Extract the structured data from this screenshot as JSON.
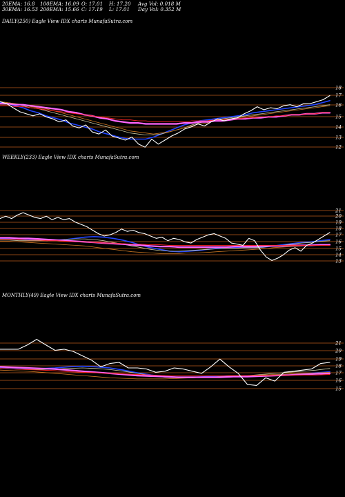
{
  "header": {
    "row1": [
      "20EMA: 16.8",
      "100EMA: 16.09",
      "O: 17.01",
      "H: 17.20",
      "Avg Vol: 0.018 M"
    ],
    "row2": [
      "30EMA: 16.53",
      "200EMA: 15.66",
      "C: 17.19",
      "L: 17.01",
      "Day Vol: 0.352  M"
    ]
  },
  "colors": {
    "background": "#000000",
    "price": "#ffffff",
    "gridline": "#8b4513",
    "ema_short": "#2244ff",
    "ema_mid": "#c8c8a0",
    "ema_long": "#ff66ff",
    "ema_long2": "#ff2222",
    "orange_ema": "#cc7722"
  },
  "chart_data": [
    {
      "type": "line",
      "title": "DAILY(250) Eagle  View  IDX  charts MunafaSutra.com",
      "ytick_labels": [
        "18",
        "17",
        "16",
        "15",
        "14",
        "13",
        "12"
      ],
      "ylim": [
        11.5,
        18.6
      ],
      "grid": true,
      "series": [
        {
          "role": "price",
          "color": "#ffffff",
          "width": 1.1,
          "values": [
            16.6,
            16.4,
            16.0,
            15.6,
            15.4,
            15.2,
            15.4,
            15.1,
            14.9,
            14.6,
            14.8,
            14.2,
            14.0,
            14.3,
            13.6,
            13.4,
            13.8,
            13.2,
            13.0,
            12.8,
            13.1,
            12.4,
            12.1,
            12.9,
            12.4,
            12.8,
            13.2,
            13.5,
            13.9,
            14.1,
            14.4,
            14.2,
            14.6,
            14.9,
            14.7,
            14.9,
            15.0,
            15.4,
            15.7,
            16.1,
            15.8,
            16.0,
            15.9,
            16.2,
            16.3,
            16.1,
            16.4,
            16.4,
            16.6,
            16.8,
            17.2
          ]
        },
        {
          "role": "ema",
          "color": "#2244ff",
          "width": 1.6,
          "values": [
            16.5,
            16.4,
            16.2,
            16.0,
            15.7,
            15.5,
            15.2,
            15.0,
            14.8,
            14.5,
            14.3,
            14.1,
            13.9,
            13.6,
            13.4,
            13.2,
            13.0,
            12.9,
            12.9,
            12.9,
            13.1,
            13.4,
            13.7,
            14.0,
            14.3,
            14.5,
            14.7,
            14.8,
            14.9,
            15.0,
            15.1,
            15.2,
            15.3,
            15.5,
            15.6,
            15.7,
            15.8,
            15.9,
            16.0,
            16.1,
            16.2,
            16.3,
            16.5,
            16.7
          ]
        },
        {
          "role": "ema",
          "color": "#c8c8a0",
          "width": 0.8,
          "values": [
            16.6,
            16.5,
            16.4,
            16.2,
            16.0,
            15.9,
            15.7,
            15.5,
            15.3,
            15.1,
            14.9,
            14.7,
            14.5,
            14.3,
            14.1,
            13.9,
            13.7,
            13.5,
            13.4,
            13.3,
            13.3,
            13.4,
            13.6,
            13.8,
            14.0,
            14.3,
            14.5,
            14.7,
            14.8,
            14.9,
            15.0,
            15.1,
            15.2,
            15.3,
            15.4,
            15.5,
            15.6,
            15.7,
            15.8,
            15.9,
            16.0,
            16.1,
            16.2,
            16.3
          ]
        },
        {
          "role": "ema",
          "color": "#cc7722",
          "width": 0.8,
          "values": [
            16.6,
            16.5,
            16.4,
            16.3,
            16.1,
            16.0,
            15.9,
            15.7,
            15.5,
            15.3,
            15.1,
            14.9,
            14.7,
            14.5,
            14.3,
            14.1,
            13.9,
            13.7,
            13.6,
            13.5,
            13.4,
            13.5,
            13.6,
            13.8,
            14.0,
            14.2,
            14.4,
            14.5,
            14.7,
            14.8,
            14.9,
            15.0,
            15.1,
            15.2,
            15.3,
            15.4,
            15.5,
            15.6,
            15.7,
            15.8,
            15.9,
            16.0,
            16.1,
            16.2
          ]
        },
        {
          "role": "ema",
          "color": "#ff66ff",
          "width": 2.2,
          "values": [
            16.4,
            16.4,
            16.3,
            16.3,
            16.2,
            16.1,
            16.0,
            15.9,
            15.8,
            15.6,
            15.5,
            15.3,
            15.2,
            15.0,
            14.9,
            14.7,
            14.6,
            14.5,
            14.5,
            14.4,
            14.4,
            14.4,
            14.4,
            14.4,
            14.5,
            14.5,
            14.6,
            14.6,
            14.7,
            14.7,
            14.8,
            14.9,
            14.9,
            15.0,
            15.0,
            15.1,
            15.1,
            15.2,
            15.3,
            15.3,
            15.4,
            15.4,
            15.5,
            15.5
          ]
        },
        {
          "role": "ema",
          "color": "#ff2222",
          "width": 0.9,
          "values": [
            16.2,
            16.2,
            16.1,
            16.1,
            16.0,
            15.9,
            15.8,
            15.7,
            15.6,
            15.5,
            15.4,
            15.3,
            15.2,
            15.1,
            15.0,
            14.9,
            14.8,
            14.8,
            14.7,
            14.7,
            14.6,
            14.6,
            14.6,
            14.6,
            14.6,
            14.7,
            14.7,
            14.7,
            14.8,
            14.8,
            14.9,
            14.9,
            15.0,
            15.0,
            15.1,
            15.1,
            15.2,
            15.2,
            15.3,
            15.3,
            15.4,
            15.4,
            15.5,
            15.5
          ]
        }
      ]
    },
    {
      "type": "line",
      "title": "WEEKLY(233) Eagle  View  IDX  charts MunafaSutra.com",
      "ytick_labels": [
        "21",
        "20",
        "19",
        "18",
        "17",
        "16",
        "15",
        "14",
        "13"
      ],
      "ylim": [
        11.5,
        21.8
      ],
      "grid": true,
      "series": [
        {
          "role": "price",
          "color": "#ffffff",
          "width": 1.1,
          "values": [
            19.6,
            20.0,
            19.6,
            20.2,
            20.6,
            20.2,
            19.8,
            19.6,
            20.0,
            19.4,
            19.8,
            19.4,
            19.6,
            19.0,
            18.6,
            18.2,
            17.6,
            17.0,
            16.6,
            16.8,
            17.2,
            17.8,
            17.4,
            17.6,
            17.2,
            17.0,
            16.6,
            16.2,
            16.4,
            15.8,
            16.2,
            16.0,
            15.6,
            15.4,
            16.0,
            16.4,
            16.8,
            17.0,
            16.6,
            16.2,
            15.4,
            15.2,
            15.0,
            16.2,
            15.8,
            14.2,
            13.0,
            12.4,
            12.8,
            13.4,
            14.2,
            14.6,
            14.0,
            15.0,
            15.4,
            16.0,
            16.6,
            17.2
          ]
        },
        {
          "role": "ema",
          "color": "#2244ff",
          "width": 1.6,
          "values": [
            16.2,
            16.2,
            16.1,
            16.0,
            16.0,
            15.9,
            15.9,
            16.0,
            16.2,
            16.4,
            16.5,
            16.4,
            16.2,
            15.9,
            15.5,
            15.0,
            14.6,
            14.3,
            14.0,
            13.9,
            14.0,
            14.1,
            14.3,
            14.5,
            14.6,
            14.6,
            14.6,
            14.6,
            14.7,
            14.9,
            15.1,
            15.3,
            15.5,
            15.6,
            15.8,
            16.0
          ]
        },
        {
          "role": "ema",
          "color": "#c8c8a0",
          "width": 0.8,
          "values": [
            15.9,
            15.9,
            15.8,
            15.8,
            15.8,
            15.8,
            15.9,
            16.0,
            16.1,
            16.1,
            16.0,
            15.8,
            15.5,
            15.2,
            14.9,
            14.6,
            14.3,
            14.1,
            14.0,
            14.0,
            14.1,
            14.2,
            14.3,
            14.4,
            14.5,
            14.5,
            14.6,
            14.6,
            14.7,
            14.9,
            15.0,
            15.2,
            15.4,
            15.5,
            15.7,
            15.8
          ]
        },
        {
          "role": "ema",
          "color": "#cc7722",
          "width": 0.8,
          "values": [
            15.7,
            15.7,
            15.6,
            15.5,
            15.4,
            15.3,
            15.2,
            15.1,
            15.0,
            14.9,
            14.7,
            14.5,
            14.3,
            14.1,
            13.9,
            13.8,
            13.7,
            13.6,
            13.6,
            13.6,
            13.7,
            13.7,
            13.8,
            13.9,
            14.0,
            14.1,
            14.2,
            14.3,
            14.4,
            14.6,
            14.7,
            14.8,
            14.9,
            15.0,
            15.1,
            15.2
          ]
        },
        {
          "role": "ema",
          "color": "#ff66ff",
          "width": 2.2,
          "values": [
            16.3,
            16.3,
            16.2,
            16.2,
            16.1,
            16.0,
            15.9,
            15.8,
            15.7,
            15.6,
            15.5,
            15.4,
            15.3,
            15.2,
            15.1,
            15.0,
            14.9,
            14.8,
            14.8,
            14.7,
            14.7,
            14.7,
            14.7,
            14.7,
            14.7,
            14.8,
            14.8,
            14.8,
            14.9,
            14.9,
            14.9,
            15.0,
            15.0,
            15.0,
            15.1,
            15.1
          ]
        },
        {
          "role": "ema",
          "color": "#ff2222",
          "width": 0.9,
          "values": [
            16.0,
            16.0,
            16.0,
            15.9,
            15.9,
            15.8,
            15.8,
            15.7,
            15.6,
            15.6,
            15.5,
            15.4,
            15.4,
            15.3,
            15.2,
            15.2,
            15.1,
            15.1,
            15.0,
            15.0,
            15.0,
            15.0,
            15.0,
            15.0,
            15.0,
            15.0,
            15.0,
            15.0,
            15.0,
            15.0,
            15.0,
            15.0,
            15.0,
            15.0,
            15.0,
            15.0
          ]
        }
      ]
    },
    {
      "type": "line",
      "title": "MONTHLY(49) Eagle  View  IDX  charts MunafaSutra.com",
      "ytick_labels": [
        "21",
        "20",
        "19",
        "18",
        "17",
        "16",
        "15"
      ],
      "ylim": [
        12.0,
        21.8
      ],
      "grid": true,
      "series": [
        {
          "role": "price",
          "color": "#ffffff",
          "width": 1.1,
          "values": [
            19.8,
            19.8,
            19.8,
            20.6,
            21.6,
            20.6,
            19.6,
            19.8,
            19.4,
            18.6,
            17.8,
            16.6,
            17.2,
            17.4,
            16.4,
            16.4,
            16.2,
            15.6,
            15.8,
            16.4,
            16.2,
            15.8,
            15.4,
            16.6,
            18.0,
            16.6,
            15.4,
            13.4,
            13.2,
            14.6,
            14.0,
            15.6,
            15.8,
            16.0,
            16.2,
            17.2,
            17.4
          ]
        },
        {
          "role": "ema",
          "color": "#2244ff",
          "width": 1.6,
          "values": [
            16.5,
            16.4,
            16.3,
            16.3,
            16.4,
            16.6,
            16.7,
            16.6,
            16.4,
            16.0,
            15.5,
            15.1,
            14.8,
            14.7,
            14.7,
            14.8,
            14.8,
            14.9,
            14.9,
            14.9,
            15.0,
            15.1,
            15.3,
            15.5,
            15.7
          ]
        },
        {
          "role": "ema",
          "color": "#c8c8a0",
          "width": 0.8,
          "values": [
            16.3,
            16.2,
            16.1,
            16.1,
            16.2,
            16.3,
            16.4,
            16.3,
            16.1,
            15.8,
            15.4,
            15.0,
            14.7,
            14.6,
            14.6,
            14.7,
            14.8,
            14.9,
            15.0,
            15.2,
            15.4,
            15.6,
            15.8,
            16.0,
            16.3
          ]
        },
        {
          "role": "ema",
          "color": "#cc7722",
          "width": 0.8,
          "values": [
            16.0,
            15.9,
            15.8,
            15.6,
            15.4,
            15.2,
            15.0,
            14.8,
            14.6,
            14.5,
            14.4,
            14.4,
            14.4,
            14.5,
            14.6,
            14.7,
            14.8,
            14.9,
            15.0,
            15.1,
            15.2,
            15.3,
            15.4,
            15.5,
            15.6
          ]
        },
        {
          "role": "ema",
          "color": "#ff66ff",
          "width": 2.2,
          "values": [
            16.6,
            16.5,
            16.4,
            16.3,
            16.2,
            16.0,
            15.8,
            15.6,
            15.4,
            15.2,
            15.0,
            14.9,
            14.8,
            14.7,
            14.7,
            14.7,
            14.7,
            14.8,
            14.8,
            14.9,
            15.0,
            15.1,
            15.2,
            15.3,
            15.4
          ]
        },
        {
          "role": "ema",
          "color": "#ff2222",
          "width": 0.9,
          "values": [
            16.3,
            16.2,
            16.1,
            16.0,
            15.9,
            15.7,
            15.6,
            15.5,
            15.4,
            15.3,
            15.2,
            15.1,
            15.0,
            15.0,
            15.0,
            15.0,
            15.0,
            15.0,
            15.0,
            15.0,
            15.0,
            15.1,
            15.1,
            15.1,
            15.2
          ]
        }
      ]
    }
  ]
}
